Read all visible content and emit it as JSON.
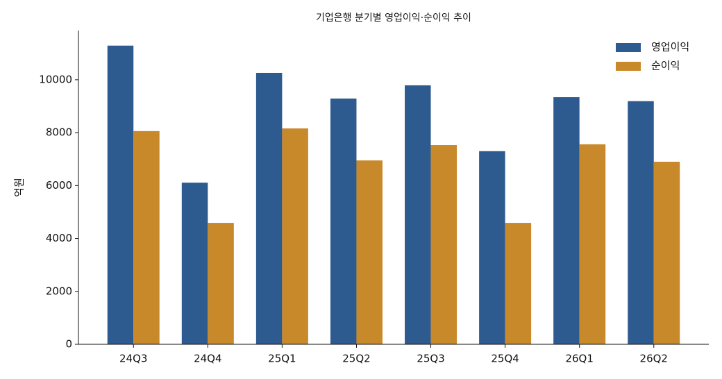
{
  "chart_data": {
    "type": "bar",
    "title": "기업은행 분기별 영업이익·순이익 추이",
    "ylabel": "억원",
    "categories": [
      "24Q3",
      "24Q4",
      "25Q1",
      "25Q2",
      "25Q3",
      "25Q4",
      "26Q1",
      "26Q2"
    ],
    "series": [
      {
        "name": "영업이익",
        "color": "#2e5b8f",
        "values": [
          11290,
          6110,
          10260,
          9290,
          9790,
          7300,
          9340,
          9190
        ]
      },
      {
        "name": "순이익",
        "color": "#c8892b",
        "values": [
          8060,
          4590,
          8160,
          6950,
          7530,
          4590,
          7560,
          6900
        ]
      }
    ],
    "ylim": [
      0,
      11860
    ],
    "yticks": [
      0,
      2000,
      4000,
      6000,
      8000,
      10000
    ],
    "grid": false,
    "legend": "upper right"
  }
}
